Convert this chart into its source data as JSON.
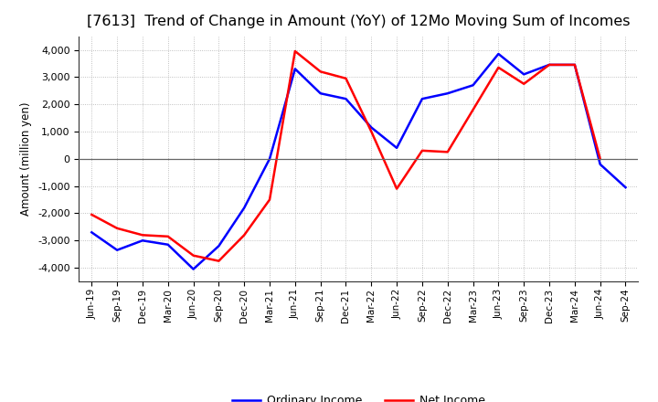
{
  "title": "[7613]  Trend of Change in Amount (YoY) of 12Mo Moving Sum of Incomes",
  "ylabel": "Amount (million yen)",
  "xlabels": [
    "Jun-19",
    "Sep-19",
    "Dec-19",
    "Mar-20",
    "Jun-20",
    "Sep-20",
    "Dec-20",
    "Mar-21",
    "Jun-21",
    "Sep-21",
    "Dec-21",
    "Mar-22",
    "Jun-22",
    "Sep-22",
    "Dec-22",
    "Mar-23",
    "Jun-23",
    "Sep-23",
    "Dec-23",
    "Mar-24",
    "Jun-24",
    "Sep-24"
  ],
  "ordinary_income": [
    -2700,
    -3350,
    -3000,
    -3150,
    -4050,
    -3200,
    -1800,
    0,
    3300,
    2400,
    2200,
    1150,
    400,
    2200,
    2400,
    2700,
    3850,
    3100,
    3450,
    3450,
    -200,
    -1050
  ],
  "net_income": [
    -2050,
    -2550,
    -2800,
    -2850,
    -3550,
    -3750,
    -2800,
    -1500,
    3950,
    3200,
    2950,
    1000,
    -1100,
    300,
    250,
    1800,
    3350,
    2750,
    3450,
    3450,
    0,
    null
  ],
  "ordinary_color": "#0000ff",
  "net_color": "#ff0000",
  "ylim": [
    -4500,
    4500
  ],
  "yticks": [
    -4000,
    -3000,
    -2000,
    -1000,
    0,
    1000,
    2000,
    3000,
    4000
  ],
  "background_color": "#ffffff",
  "grid_color": "#b0b0b0",
  "title_fontsize": 11.5,
  "legend_labels": [
    "Ordinary Income",
    "Net Income"
  ]
}
